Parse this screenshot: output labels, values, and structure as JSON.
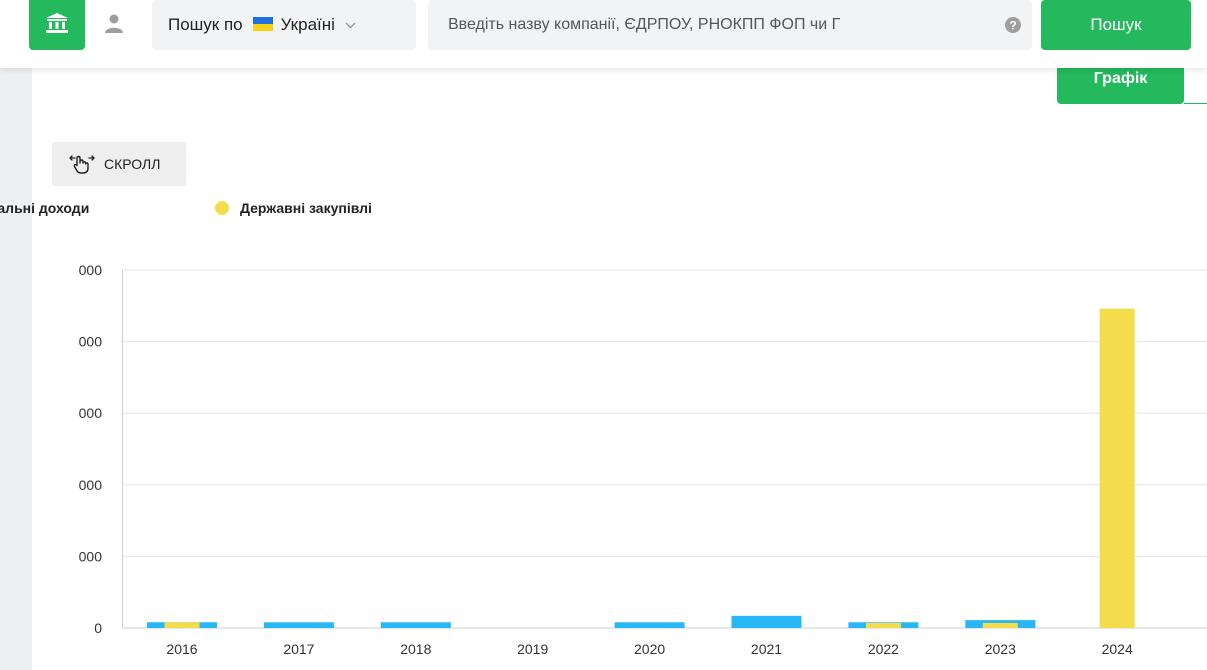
{
  "header": {
    "search_scope_label": "Пошук по",
    "country": "Україні",
    "search_placeholder": "Введіть назву компанії, ЄДРПОУ, РНОКПП ФОП чи Г",
    "search_button": "Пошук",
    "icons": {
      "home": "bank-icon",
      "user": "user-icon",
      "flag": "ukraine-flag-icon",
      "dropdown": "chevron-down-icon",
      "help": "help-circle-icon"
    }
  },
  "view_tab": {
    "label": "Графік"
  },
  "scroll_button": {
    "label": "СКРОЛЛ",
    "icon": "swipe-hand-icon"
  },
  "legend": {
    "total_income": "Загальні доходи",
    "procurement": "Державні закупівлі"
  },
  "colors": {
    "accent": "#23b95c",
    "total_income": "#29b6f6",
    "procurement": "#f4dd4c"
  },
  "chart_data": {
    "type": "bar",
    "categories": [
      "2016",
      "2017",
      "2018",
      "2019",
      "2020",
      "2021",
      "2022",
      "2023",
      "2024"
    ],
    "y_tick_labels": [
      "0",
      "000",
      "000",
      "000",
      "000",
      "000"
    ],
    "y_tick_values": [
      0,
      1,
      2,
      3,
      4,
      5
    ],
    "ylim": [
      0,
      5
    ],
    "grid": true,
    "legend_position": "top-left",
    "series": [
      {
        "name": "Загальні доходи",
        "values": [
          0.08,
          0.08,
          0.08,
          0,
          0.08,
          0.17,
          0.08,
          0.11,
          0
        ]
      },
      {
        "name": "Державні закупівлі",
        "values": [
          0.08,
          0,
          0,
          0,
          0,
          0,
          0.07,
          0.07,
          4.46
        ]
      }
    ]
  }
}
